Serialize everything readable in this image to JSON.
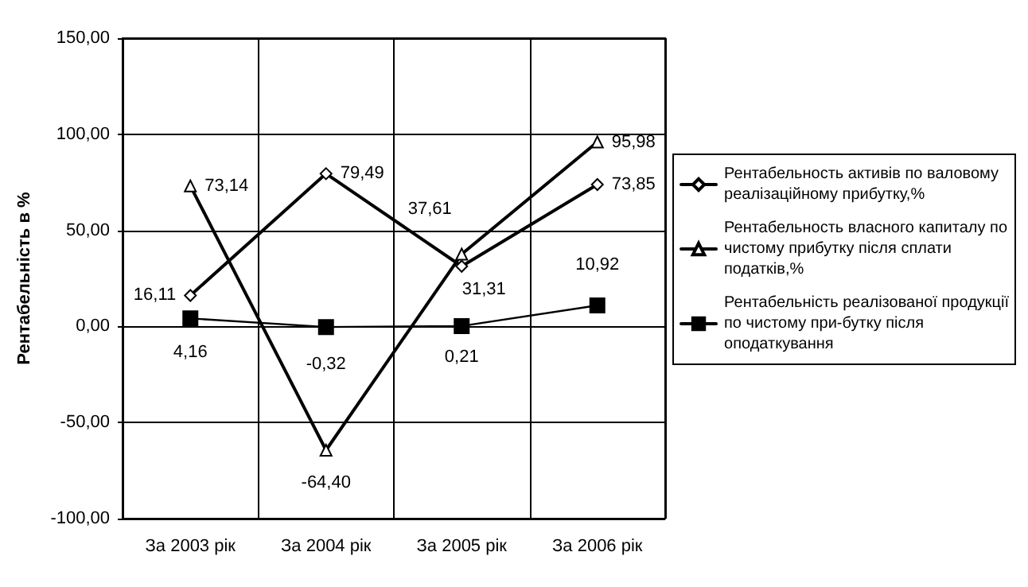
{
  "chart_data": {
    "type": "line",
    "ylabel": "Рентабельність в %",
    "categories": [
      "За 2003 рік",
      "За 2004 рік",
      "За 2005 рік",
      "За 2006 рік"
    ],
    "series": [
      {
        "name": "Рентабельность активів по валовому реалізаційному прибутку,%",
        "color": "#000000",
        "marker": "diamond",
        "values": [
          16.11,
          79.49,
          31.31,
          73.85
        ],
        "value_labels": [
          "16,11",
          "79,49",
          "31,31",
          "73,85"
        ]
      },
      {
        "name": "Рентабельность власного капиталу по чистому прибутку після сплати податків,%",
        "color": "#000000",
        "marker": "triangle",
        "values": [
          73.14,
          -64.4,
          37.61,
          95.98
        ],
        "value_labels": [
          "73,14",
          "-64,40",
          "37,61",
          "95,98"
        ]
      },
      {
        "name": "Рентабельність реалізованої продукції по чистому при-бутку після оподаткування",
        "color": "#000000",
        "marker": "square",
        "values": [
          4.16,
          -0.32,
          0.21,
          10.92
        ],
        "value_labels": [
          "4,16",
          "-0,32",
          "0,21",
          "10,92"
        ]
      }
    ],
    "ylim": [
      -100,
      150
    ],
    "yticks": [
      {
        "value": -100,
        "label": "-100,00"
      },
      {
        "value": -50,
        "label": "-50,00"
      },
      {
        "value": 0,
        "label": "0,00"
      },
      {
        "value": 50,
        "label": "50,00"
      },
      {
        "value": 100,
        "label": "100,00"
      },
      {
        "value": 150,
        "label": "150,00"
      }
    ],
    "grid": true,
    "legend": "right",
    "line_style": "solid"
  }
}
